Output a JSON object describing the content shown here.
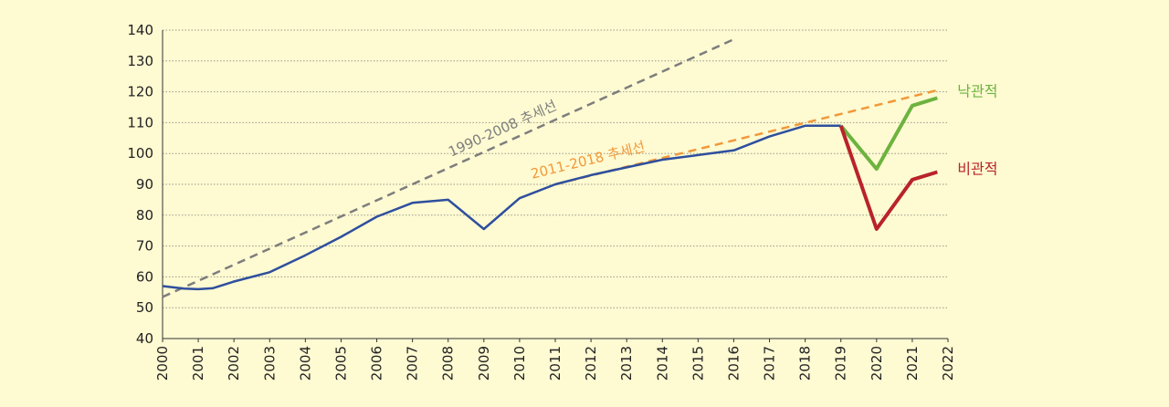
{
  "chart_data": {
    "type": "line",
    "title": "",
    "xlabel": "",
    "ylabel": "",
    "ylim": [
      40,
      140
    ],
    "xlim": [
      2000,
      2022
    ],
    "y_ticks": [
      "40",
      "50",
      "60",
      "70",
      "80",
      "90",
      "100",
      "110",
      "120",
      "130",
      "140"
    ],
    "x_ticks": [
      "2000",
      "2001",
      "2002",
      "2003",
      "2004",
      "2005",
      "2006",
      "2007",
      "2008",
      "2009",
      "2010",
      "2011",
      "2012",
      "2013",
      "2014",
      "2015",
      "2016",
      "2017",
      "2018",
      "2019",
      "2020",
      "2021",
      "2022"
    ],
    "grid": true,
    "series": [
      {
        "key": "actual",
        "color": "#2e4f9e",
        "x": [
          2000,
          2000.6,
          2001,
          2001.4,
          2002,
          2003,
          2004,
          2005,
          2006,
          2007,
          2008,
          2009,
          2010,
          2011,
          2012,
          2013,
          2014,
          2015,
          2016,
          2017,
          2018,
          2019
        ],
        "y": [
          57,
          56.2,
          56,
          56.3,
          58.5,
          61.5,
          67,
          73,
          79.5,
          84,
          85,
          75.5,
          85.5,
          90,
          93,
          95.5,
          98,
          99.5,
          101,
          105.5,
          109,
          109
        ]
      },
      {
        "key": "optimistic",
        "name": "낙관적",
        "color": "#6db33f",
        "x": [
          2019,
          2020,
          2021,
          2021.7
        ],
        "y": [
          109,
          95,
          115.5,
          118
        ]
      },
      {
        "key": "pessimistic",
        "name": "비관적",
        "color": "#b8232a",
        "x": [
          2019,
          2020,
          2021,
          2021.7
        ],
        "y": [
          109,
          75.5,
          91.5,
          94
        ]
      }
    ],
    "trendlines": [
      {
        "key": "trend_1990",
        "label": "1990-2008 추세선",
        "color": "#7d7d7d",
        "x": [
          2000,
          2016
        ],
        "y": [
          53.5,
          137
        ]
      },
      {
        "key": "trend_2011",
        "label": "2011-2018 추세선",
        "color": "#f0993a",
        "x": [
          2011,
          2021.7
        ],
        "y": [
          90,
          120.5
        ]
      }
    ]
  }
}
